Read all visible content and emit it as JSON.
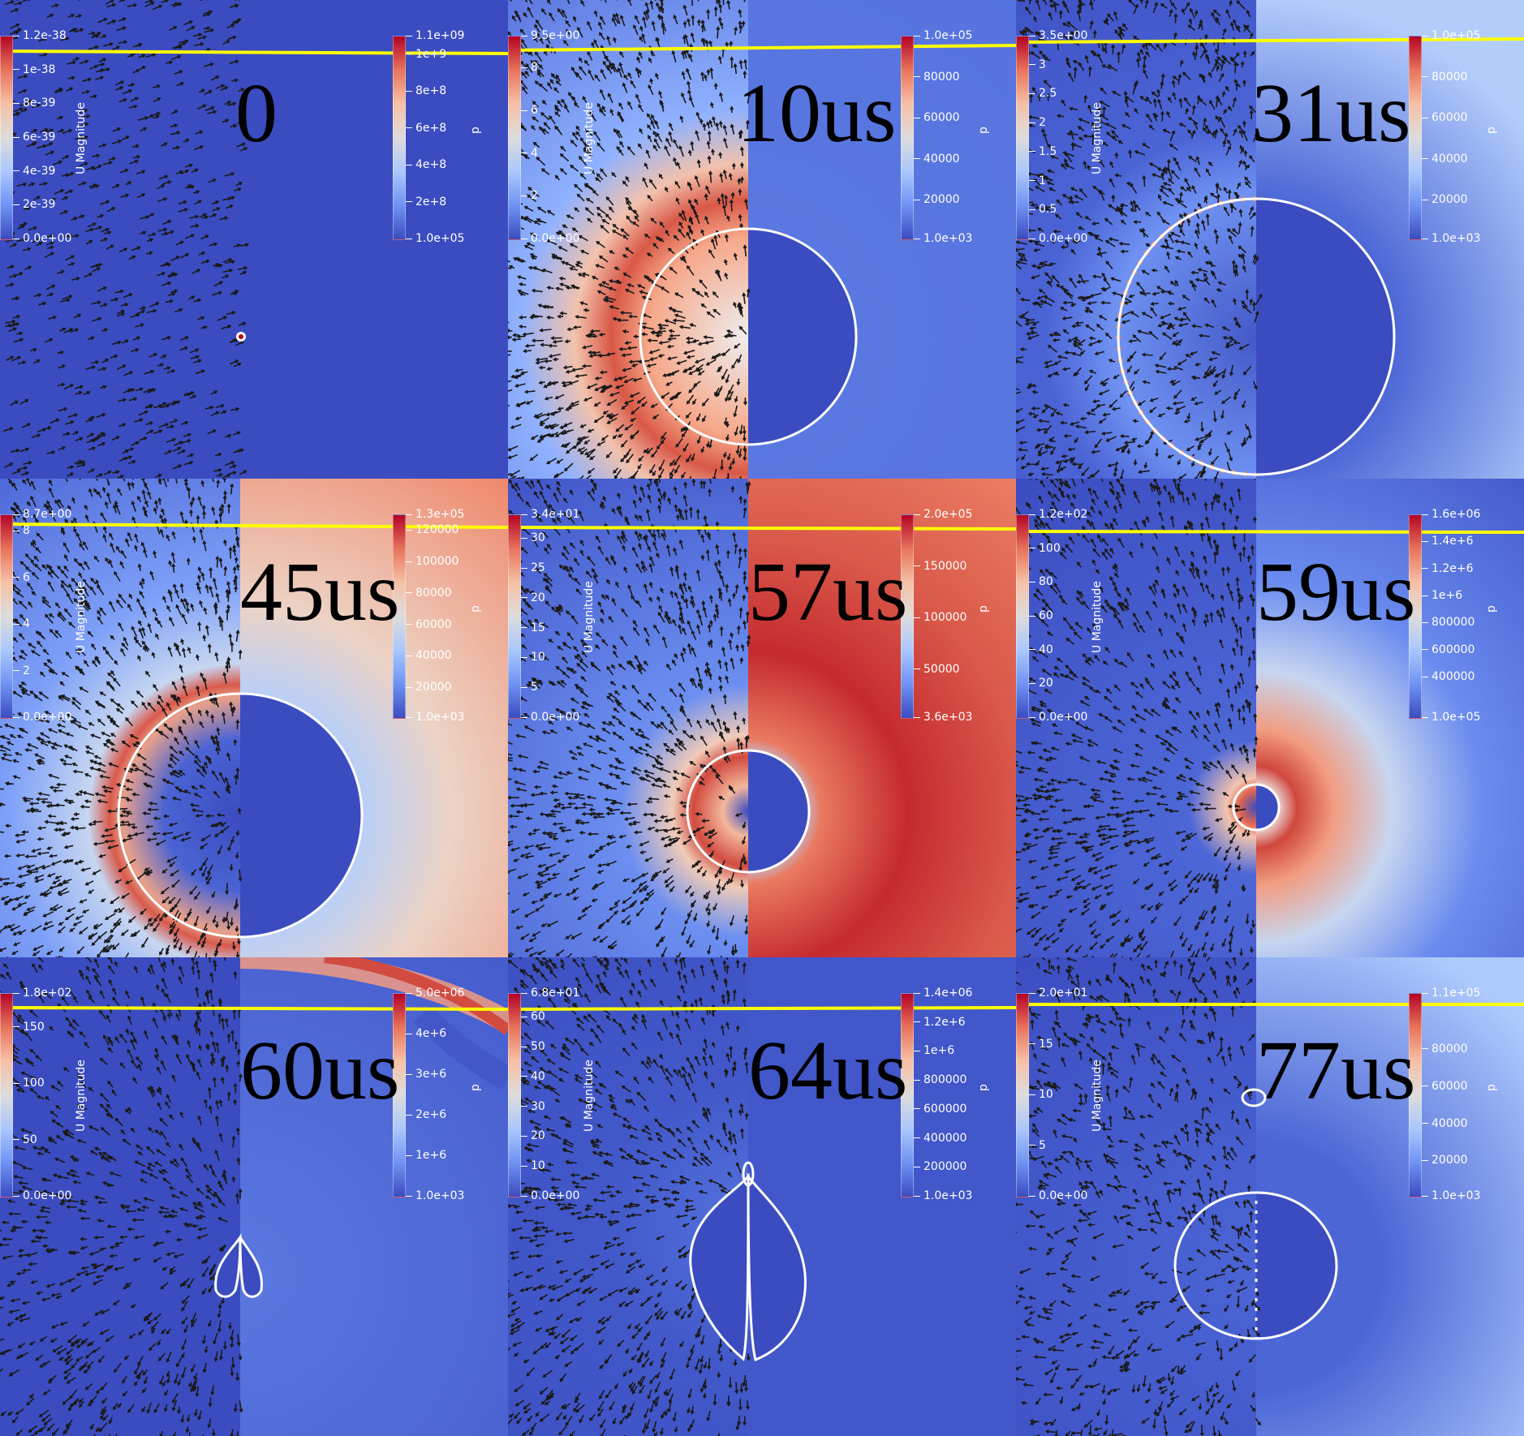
{
  "figure": {
    "colors": {
      "cool": "#3b4cc0",
      "warm": "#b40426",
      "interface": "#ffffff",
      "free_surface": "#ffff00",
      "arrows": "#1a1a1a"
    },
    "velocity_bar_title": "U Magnitude",
    "pressure_bar_title": "p",
    "panels": [
      {
        "time": "0",
        "velocity_ticks": [
          {
            "label": "1.2e-38",
            "value": 1.2e-38
          },
          {
            "label": "1e-38",
            "value": 1e-38
          },
          {
            "label": "8e-39",
            "value": 8e-39
          },
          {
            "label": "6e-39",
            "value": 6e-39
          },
          {
            "label": "4e-39",
            "value": 4e-39
          },
          {
            "label": "2e-39",
            "value": 2e-39
          },
          {
            "label": "0.0e+00",
            "value": 0
          }
        ],
        "pressure_ticks": [
          {
            "label": "1.1e+09",
            "value": 1100000000.0
          },
          {
            "label": "1e+9",
            "value": 1000000000.0
          },
          {
            "label": "8e+8",
            "value": 800000000.0
          },
          {
            "label": "6e+8",
            "value": 600000000.0
          },
          {
            "label": "4e+8",
            "value": 400000000.0
          },
          {
            "label": "2e+8",
            "value": 200000000.0
          },
          {
            "label": "1.0e+05",
            "value": 100000.0
          }
        ]
      },
      {
        "time": "10us",
        "velocity_ticks": [
          {
            "label": "9.5e+00",
            "value": 9.5
          },
          {
            "label": "8",
            "value": 8
          },
          {
            "label": "6",
            "value": 6
          },
          {
            "label": "4",
            "value": 4
          },
          {
            "label": "2",
            "value": 2
          },
          {
            "label": "0.0e+00",
            "value": 0
          }
        ],
        "pressure_ticks": [
          {
            "label": "1.0e+05",
            "value": 100000.0
          },
          {
            "label": "80000",
            "value": 80000
          },
          {
            "label": "60000",
            "value": 60000
          },
          {
            "label": "40000",
            "value": 40000
          },
          {
            "label": "20000",
            "value": 20000
          },
          {
            "label": "1.0e+03",
            "value": 1000
          }
        ]
      },
      {
        "time": "31us",
        "velocity_ticks": [
          {
            "label": "3.5e+00",
            "value": 3.5
          },
          {
            "label": "3",
            "value": 3
          },
          {
            "label": "2.5",
            "value": 2.5
          },
          {
            "label": "2",
            "value": 2
          },
          {
            "label": "1.5",
            "value": 1.5
          },
          {
            "label": "1",
            "value": 1
          },
          {
            "label": "0.5",
            "value": 0.5
          },
          {
            "label": "0.0e+00",
            "value": 0
          }
        ],
        "pressure_ticks": [
          {
            "label": "1.0e+05",
            "value": 100000.0
          },
          {
            "label": "80000",
            "value": 80000
          },
          {
            "label": "60000",
            "value": 60000
          },
          {
            "label": "40000",
            "value": 40000
          },
          {
            "label": "20000",
            "value": 20000
          },
          {
            "label": "1.0e+03",
            "value": 1000
          }
        ]
      },
      {
        "time": "45us",
        "velocity_ticks": [
          {
            "label": "8.7e+00",
            "value": 8.7
          },
          {
            "label": "8",
            "value": 8
          },
          {
            "label": "6",
            "value": 6
          },
          {
            "label": "4",
            "value": 4
          },
          {
            "label": "2",
            "value": 2
          },
          {
            "label": "0.0e+00",
            "value": 0
          }
        ],
        "pressure_ticks": [
          {
            "label": "1.3e+05",
            "value": 130000
          },
          {
            "label": "120000",
            "value": 120000
          },
          {
            "label": "100000",
            "value": 100000
          },
          {
            "label": "80000",
            "value": 80000
          },
          {
            "label": "60000",
            "value": 60000
          },
          {
            "label": "40000",
            "value": 40000
          },
          {
            "label": "20000",
            "value": 20000
          },
          {
            "label": "1.0e+03",
            "value": 1000
          }
        ]
      },
      {
        "time": "57us",
        "velocity_ticks": [
          {
            "label": "3.4e+01",
            "value": 34
          },
          {
            "label": "30",
            "value": 30
          },
          {
            "label": "25",
            "value": 25
          },
          {
            "label": "20",
            "value": 20
          },
          {
            "label": "15",
            "value": 15
          },
          {
            "label": "10",
            "value": 10
          },
          {
            "label": "5",
            "value": 5
          },
          {
            "label": "0.0e+00",
            "value": 0
          }
        ],
        "pressure_ticks": [
          {
            "label": "2.0e+05",
            "value": 200000
          },
          {
            "label": "150000",
            "value": 150000
          },
          {
            "label": "100000",
            "value": 100000
          },
          {
            "label": "50000",
            "value": 50000
          },
          {
            "label": "3.6e+03",
            "value": 3600
          }
        ]
      },
      {
        "time": "59us",
        "velocity_ticks": [
          {
            "label": "1.2e+02",
            "value": 120
          },
          {
            "label": "100",
            "value": 100
          },
          {
            "label": "80",
            "value": 80
          },
          {
            "label": "60",
            "value": 60
          },
          {
            "label": "40",
            "value": 40
          },
          {
            "label": "20",
            "value": 20
          },
          {
            "label": "0.0e+00",
            "value": 0
          }
        ],
        "pressure_ticks": [
          {
            "label": "1.6e+06",
            "value": 1600000.0
          },
          {
            "label": "1.4e+6",
            "value": 1400000.0
          },
          {
            "label": "1.2e+6",
            "value": 1200000.0
          },
          {
            "label": "1e+6",
            "value": 1000000.0
          },
          {
            "label": "800000",
            "value": 800000
          },
          {
            "label": "600000",
            "value": 600000
          },
          {
            "label": "400000",
            "value": 400000
          },
          {
            "label": "1.0e+05",
            "value": 100000.0
          }
        ]
      },
      {
        "time": "60us",
        "velocity_ticks": [
          {
            "label": "1.8e+02",
            "value": 180
          },
          {
            "label": "150",
            "value": 150
          },
          {
            "label": "100",
            "value": 100
          },
          {
            "label": "50",
            "value": 50
          },
          {
            "label": "0.0e+00",
            "value": 0
          }
        ],
        "pressure_ticks": [
          {
            "label": "5.0e+06",
            "value": 5000000.0
          },
          {
            "label": "4e+6",
            "value": 4000000.0
          },
          {
            "label": "3e+6",
            "value": 3000000.0
          },
          {
            "label": "2e+6",
            "value": 2000000.0
          },
          {
            "label": "1e+6",
            "value": 1000000.0
          },
          {
            "label": "1.0e+03",
            "value": 1000
          }
        ]
      },
      {
        "time": "64us",
        "velocity_ticks": [
          {
            "label": "6.8e+01",
            "value": 68
          },
          {
            "label": "60",
            "value": 60
          },
          {
            "label": "50",
            "value": 50
          },
          {
            "label": "40",
            "value": 40
          },
          {
            "label": "30",
            "value": 30
          },
          {
            "label": "20",
            "value": 20
          },
          {
            "label": "10",
            "value": 10
          },
          {
            "label": "0.0e+00",
            "value": 0
          }
        ],
        "pressure_ticks": [
          {
            "label": "1.4e+06",
            "value": 1400000.0
          },
          {
            "label": "1.2e+6",
            "value": 1200000.0
          },
          {
            "label": "1e+6",
            "value": 1000000.0
          },
          {
            "label": "800000",
            "value": 800000
          },
          {
            "label": "600000",
            "value": 600000
          },
          {
            "label": "400000",
            "value": 400000
          },
          {
            "label": "200000",
            "value": 200000
          },
          {
            "label": "1.0e+03",
            "value": 1000
          }
        ]
      },
      {
        "time": "77us",
        "velocity_ticks": [
          {
            "label": "2.0e+01",
            "value": 20
          },
          {
            "label": "15",
            "value": 15
          },
          {
            "label": "10",
            "value": 10
          },
          {
            "label": "5",
            "value": 5
          },
          {
            "label": "0.0e+00",
            "value": 0
          }
        ],
        "pressure_ticks": [
          {
            "label": "1.1e+05",
            "value": 110000
          },
          {
            "label": "80000",
            "value": 80000
          },
          {
            "label": "60000",
            "value": 60000
          },
          {
            "label": "40000",
            "value": 40000
          },
          {
            "label": "20000",
            "value": 20000
          },
          {
            "label": "1.0e+03",
            "value": 1000
          }
        ]
      }
    ]
  }
}
